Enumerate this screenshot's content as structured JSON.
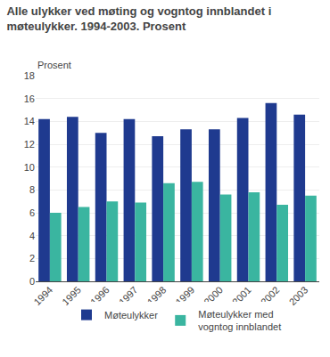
{
  "chart_data": {
    "type": "bar",
    "title": "Alle ulykker ved møting og vogntog innblandet i\nmøteulykker. 1994-2003. Prosent",
    "ylabel": "Prosent",
    "categories": [
      "1994",
      "1995",
      "1996",
      "1997",
      "1998",
      "1999",
      "2000",
      "2001",
      "2002",
      "2003"
    ],
    "series": [
      {
        "name": "Møteulykker",
        "color": "#1f3a8f",
        "values": [
          14.2,
          14.4,
          13.0,
          14.2,
          12.7,
          13.3,
          13.3,
          14.3,
          15.6,
          14.6
        ]
      },
      {
        "name": "Møteulykker med\nvogntog innblandet",
        "color": "#3ab5a0",
        "values": [
          6.0,
          6.5,
          7.0,
          6.9,
          8.6,
          8.7,
          7.6,
          7.8,
          6.7,
          7.5
        ]
      }
    ],
    "ylim": [
      0,
      18
    ],
    "yticks": [
      0,
      2,
      4,
      6,
      8,
      10,
      12,
      14,
      16,
      18
    ],
    "grid": true,
    "legend": "bottom"
  }
}
